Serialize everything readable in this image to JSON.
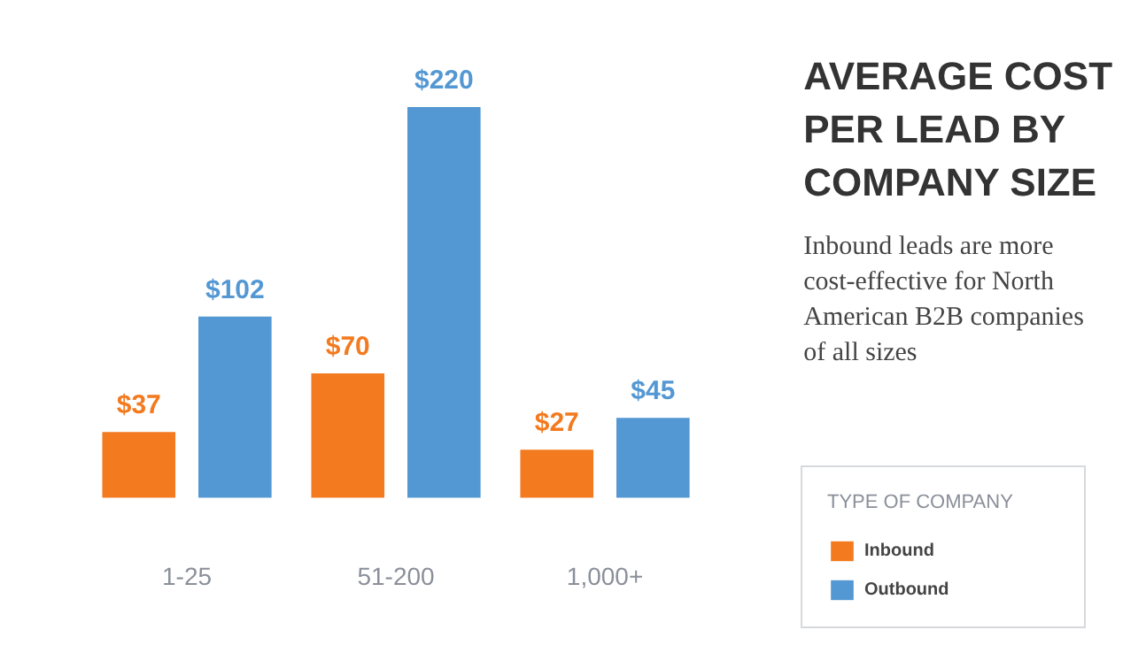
{
  "chart_data": {
    "type": "bar",
    "title": "AVERAGE COST PER LEAD BY COMPANY SIZE",
    "subtitle": "Inbound leads are more cost-effective for North American B2B companies of all sizes",
    "categories": [
      "1-25",
      "51-200",
      "1,000+"
    ],
    "series": [
      {
        "name": "Inbound",
        "color": "#f37a1f",
        "values": [
          37,
          70,
          27
        ],
        "value_labels": [
          "$37",
          "$70",
          "$27"
        ]
      },
      {
        "name": "Outbound",
        "color": "#5397d3",
        "values": [
          102,
          220,
          45
        ],
        "value_labels": [
          "$102",
          "$220",
          "$45"
        ]
      }
    ],
    "legend": "bottom right",
    "legend_title": "TYPE OF COMPANY"
  }
}
